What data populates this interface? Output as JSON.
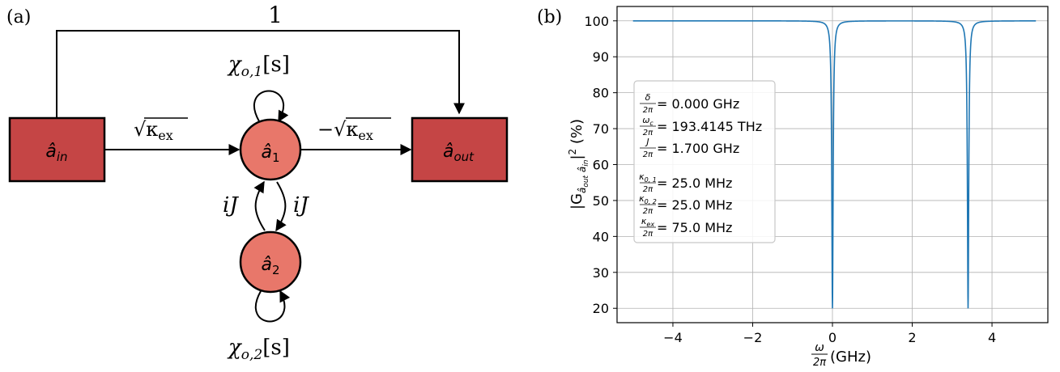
{
  "panel_a": {
    "label": "(a)",
    "input_node": {
      "base": "â",
      "sub": "in"
    },
    "output_node": {
      "base": "â",
      "sub": "out"
    },
    "mode1_node": {
      "base": "â",
      "sub": "1"
    },
    "mode2_node": {
      "base": "â",
      "sub": "2"
    },
    "direct_path_label": "1",
    "coupling_in_label": "√κ",
    "coupling_in_sub": "ex",
    "coupling_out_label": "−√κ",
    "coupling_out_sub": "ex",
    "self_loop_1": {
      "chi": "χ",
      "sub": "o,1",
      "arg": "[s]"
    },
    "self_loop_2": {
      "chi": "χ",
      "sub": "o,2",
      "arg": "[s]"
    },
    "coupling_left": "iJ",
    "coupling_right": "iJ",
    "colors": {
      "box": "#c54545",
      "circle": "#e8776a",
      "stroke": "#000000"
    }
  },
  "panel_b": {
    "label": "(b)",
    "legend": [
      {
        "sym": "δ",
        "sub": "",
        "value": " = 0.000 GHz"
      },
      {
        "sym": "ω",
        "sub": "c",
        "value": " = 193.4145 THz"
      },
      {
        "sym": "J",
        "sub": "",
        "value": " = 1.700 GHz"
      },
      {
        "sym": "κ",
        "sub": "0, 1",
        "value": " = 25.0 MHz"
      },
      {
        "sym": "κ",
        "sub": "0, 2",
        "value": " = 25.0 MHz"
      },
      {
        "sym": "κ",
        "sub": "ex",
        "value": " = 75.0 MHz"
      }
    ],
    "legend_denominator": "2π",
    "xlabel_num": "ω",
    "xlabel_den": "2π",
    "xlabel_unit": " (GHz)",
    "ylabel": "|G_{â_out â_in}|² (%)",
    "ylabel_pre": "|G",
    "ylabel_sub": "â",
    "ylabel_subsub1": "out",
    "ylabel_subsub2": "in",
    "ylabel_post": "|",
    "ylabel_sup": "2",
    "ylabel_unit": " (%)",
    "line_color": "#1f77b4"
  },
  "chart_data": {
    "type": "line",
    "xlabel": "ω/2π (GHz)",
    "ylabel": "|G_{â_out â_in}|² (%)",
    "xlim": [
      -5.4,
      5.4
    ],
    "ylim": [
      16,
      104
    ],
    "xticks": [
      -4,
      -2,
      0,
      2,
      4
    ],
    "yticks": [
      20,
      30,
      40,
      50,
      60,
      70,
      80,
      90,
      100
    ],
    "grid": true,
    "legend_position": "center-left",
    "series": [
      {
        "dips": [
          {
            "center": 0.0,
            "min": 20.0
          },
          {
            "center": 3.4,
            "min": 20.0
          }
        ],
        "baseline": 100.0,
        "x_range": [
          -5.0,
          5.1
        ]
      }
    ]
  }
}
